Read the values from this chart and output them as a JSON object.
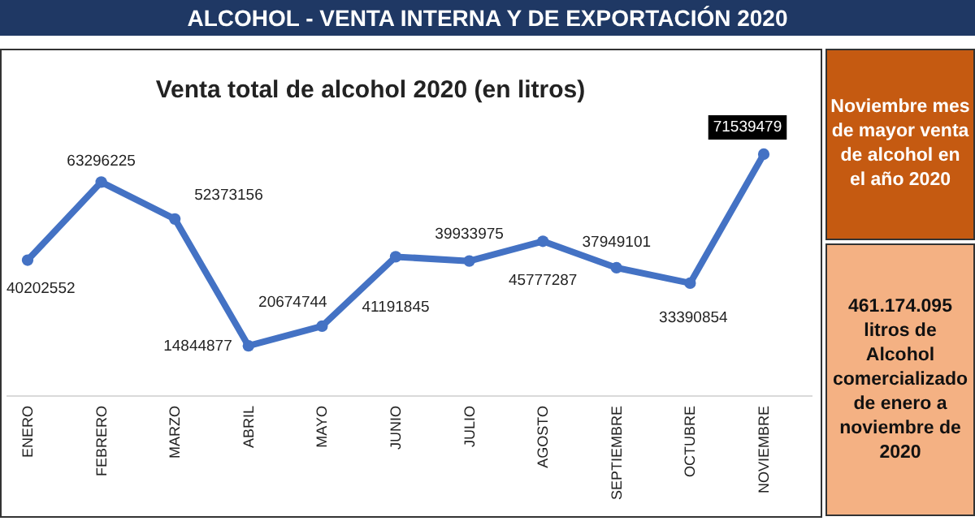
{
  "chart_data": {
    "type": "line",
    "title": "Venta total de alcohol 2020 (en litros)",
    "categories": [
      "ENERO",
      "FEBRERO",
      "MARZO",
      "ABRIL",
      "MAYO",
      "JUNIO",
      "JULIO",
      "AGOSTO",
      "SEPTIEMBRE",
      "OCTUBRE",
      "NOVIEMBRE"
    ],
    "series": [
      {
        "color": "#4472c4",
        "values": [
          40202552,
          63296225,
          52373156,
          14844877,
          20674744,
          41191845,
          39933975,
          45777287,
          37949101,
          33390854,
          71539479
        ]
      }
    ],
    "data_labels": true,
    "marker": "circle",
    "annotations": [
      "ALCOHOL  -  VENTA INTERNA Y DE EXPORTACIÓN  2020",
      "Noviembre mes de mayor venta de alcohol en el año 2020",
      "461.174.095 litros de Alcohol comercializado de enero a noviembre de 2020"
    ]
  }
}
